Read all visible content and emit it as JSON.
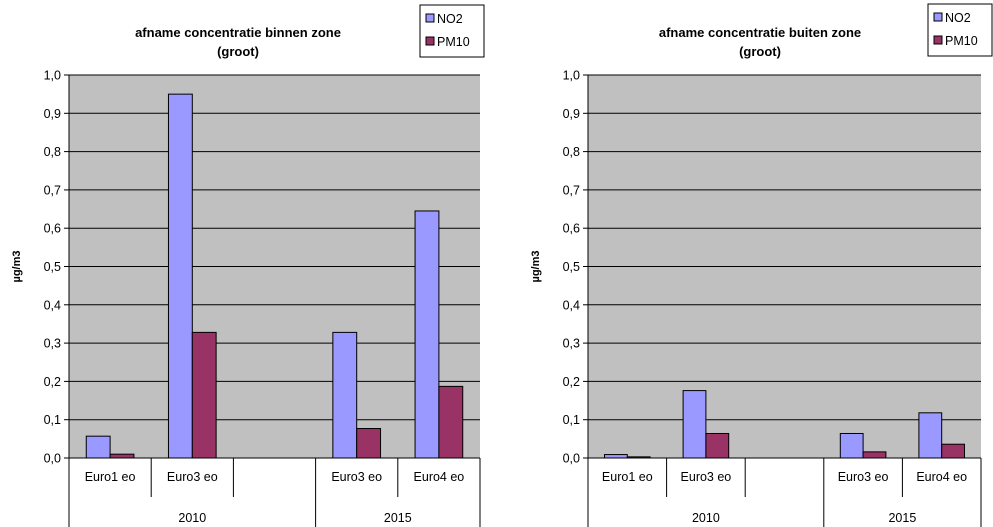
{
  "chart_data": [
    {
      "type": "bar",
      "title": "afname concentratie binnen zone",
      "subtitle": "(groot)",
      "ylabel": "µg/m3",
      "ylim": [
        0,
        1.0
      ],
      "yticks": [
        "0,0",
        "0,1",
        "0,2",
        "0,3",
        "0,4",
        "0,5",
        "0,6",
        "0,7",
        "0,8",
        "0,9",
        "1,0"
      ],
      "categories": [
        "Euro1 eo",
        "Euro3 eo",
        "",
        "Euro3 eo",
        "Euro4 eo"
      ],
      "groups": [
        {
          "label": "2010",
          "span": [
            0,
            2
          ]
        },
        {
          "label": "2015",
          "span": [
            3,
            4
          ]
        }
      ],
      "series": [
        {
          "name": "NO2",
          "color": "#9999ff",
          "values": [
            0.057,
            0.95,
            null,
            0.328,
            0.645
          ]
        },
        {
          "name": "PM10",
          "color": "#993366",
          "values": [
            0.01,
            0.328,
            null,
            0.077,
            0.187
          ]
        }
      ],
      "grid": true,
      "legend": "top-right",
      "plot_background": "#c0c0c0"
    },
    {
      "type": "bar",
      "title": "afname concentratie buiten zone",
      "subtitle": "(groot)",
      "ylabel": "µg/m3",
      "ylim": [
        0,
        1.0
      ],
      "yticks": [
        "0,0",
        "0,1",
        "0,2",
        "0,3",
        "0,4",
        "0,5",
        "0,6",
        "0,7",
        "0,8",
        "0,9",
        "1,0"
      ],
      "categories": [
        "Euro1 eo",
        "Euro3 eo",
        "",
        "Euro3 eo",
        "Euro4 eo"
      ],
      "groups": [
        {
          "label": "2010",
          "span": [
            0,
            2
          ]
        },
        {
          "label": "2015",
          "span": [
            3,
            4
          ]
        }
      ],
      "series": [
        {
          "name": "NO2",
          "color": "#9999ff",
          "values": [
            0.009,
            0.176,
            null,
            0.064,
            0.118
          ]
        },
        {
          "name": "PM10",
          "color": "#993366",
          "values": [
            0.003,
            0.064,
            null,
            0.016,
            0.036
          ]
        }
      ],
      "grid": true,
      "legend": "top-right",
      "plot_background": "#c0c0c0"
    }
  ]
}
